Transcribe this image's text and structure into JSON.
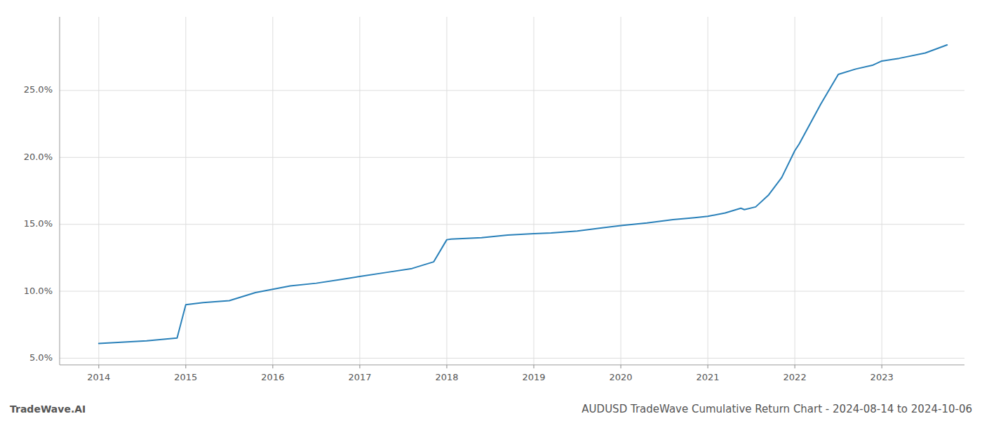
{
  "chart_data": {
    "type": "line",
    "title": "AUDUSD TradeWave Cumulative Return Chart - 2024-08-14 to 2024-10-06",
    "annotations": [
      "TradeWave.AI"
    ],
    "x": [
      2014.0,
      2014.55,
      2014.9,
      2015.0,
      2015.2,
      2015.5,
      2015.8,
      2016.0,
      2016.2,
      2016.5,
      2016.8,
      2017.0,
      2017.3,
      2017.6,
      2017.85,
      2018.0,
      2018.05,
      2018.4,
      2018.7,
      2019.0,
      2019.2,
      2019.5,
      2019.8,
      2020.0,
      2020.3,
      2020.6,
      2020.85,
      2021.0,
      2021.2,
      2021.38,
      2021.42,
      2021.55,
      2021.7,
      2021.85,
      2022.0,
      2022.05,
      2022.3,
      2022.5,
      2022.7,
      2022.9,
      2023.0,
      2023.2,
      2023.5,
      2023.75
    ],
    "values": [
      6.1,
      6.3,
      6.5,
      9.0,
      9.15,
      9.3,
      9.9,
      10.15,
      10.4,
      10.6,
      10.9,
      11.1,
      11.4,
      11.7,
      12.2,
      13.85,
      13.9,
      14.0,
      14.2,
      14.3,
      14.35,
      14.5,
      14.75,
      14.9,
      15.1,
      15.35,
      15.5,
      15.6,
      15.85,
      16.2,
      16.1,
      16.3,
      17.2,
      18.5,
      20.5,
      21.0,
      24.0,
      26.2,
      26.6,
      26.9,
      27.2,
      27.4,
      27.8,
      28.4
    ],
    "color": "#2980b9",
    "xlim": [
      2013.55,
      2023.95
    ],
    "ylim": [
      4.5,
      30.5
    ],
    "xticks": [
      2014,
      2015,
      2016,
      2017,
      2018,
      2019,
      2020,
      2021,
      2022,
      2023
    ],
    "yticks": [
      {
        "value": 5.0,
        "label": "5.0%"
      },
      {
        "value": 10.0,
        "label": "10.0%"
      },
      {
        "value": 15.0,
        "label": "15.0%"
      },
      {
        "value": 20.0,
        "label": "20.0%"
      },
      {
        "value": 25.0,
        "label": "25.0%"
      }
    ],
    "grid": true
  }
}
